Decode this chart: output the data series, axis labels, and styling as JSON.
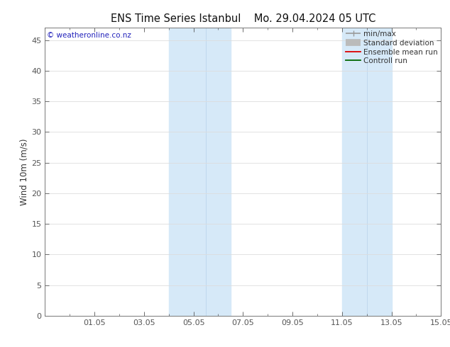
{
  "title": "ENS Time Series Istanbul    Mo. 29.04.2024 05 UTC",
  "ylabel": "Wind 10m (m/s)",
  "watermark": "© weatheronline.co.nz",
  "ylim": [
    0,
    47
  ],
  "yticks": [
    0,
    5,
    10,
    15,
    20,
    25,
    30,
    35,
    40,
    45
  ],
  "xtick_labels": [
    "01.05",
    "03.05",
    "05.05",
    "07.05",
    "09.05",
    "11.05",
    "13.05",
    "15.05"
  ],
  "xtick_positions": [
    2,
    4,
    6,
    8,
    10,
    12,
    14,
    16
  ],
  "xlim": [
    0,
    16
  ],
  "background_color": "#ffffff",
  "plot_bg_color": "#ffffff",
  "shaded_band1_x1": 5.0,
  "shaded_band1_x2": 7.5,
  "shaded_band2_x1": 12.0,
  "shaded_band2_x2": 14.0,
  "shade_color": "#d6e9f8",
  "inner_vline1": 6.5,
  "inner_vline2": 13.0,
  "grid_color": "#dddddd",
  "tick_color": "#555555",
  "title_fontsize": 10.5,
  "watermark_color": "#2222bb",
  "watermark_fontsize": 7.5,
  "axis_fontsize": 8,
  "ylabel_fontsize": 8.5,
  "legend_fontsize": 7.5
}
